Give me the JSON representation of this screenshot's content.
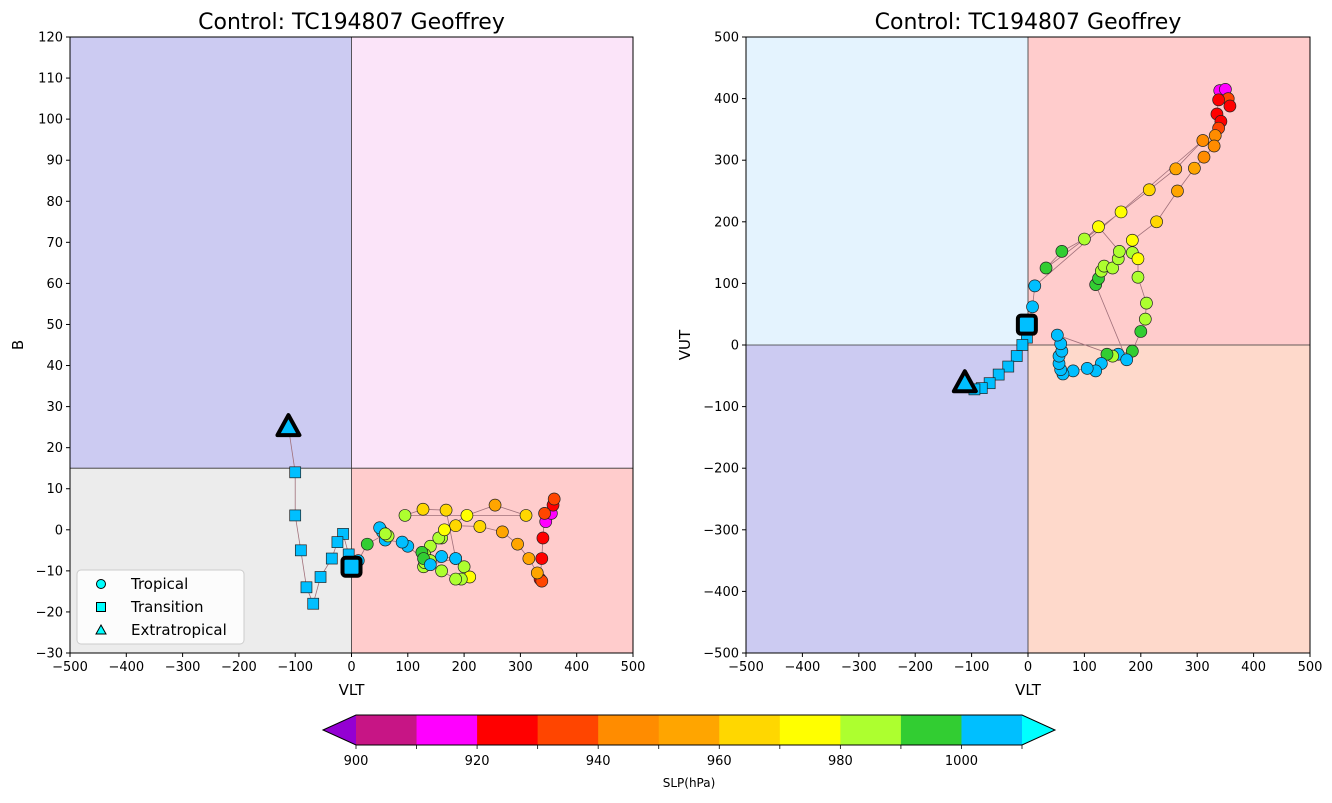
{
  "colors": {
    "b_quad_upper_left": "#cccbf2",
    "b_quad_upper_right": "#fbe4f9",
    "b_quad_lower_left": "#ececec",
    "b_quad_lower_right": "#ffcccc",
    "v_quad_upper_left": "#e4f3fe",
    "v_quad_upper_right": "#ffcccc",
    "v_quad_lower_left": "#cccbf2",
    "v_quad_lower_right": "#fed9cb",
    "track_line": "#a0707a",
    "current_outline": "#000000"
  },
  "colorbar": {
    "label": "SLP(hPa)",
    "tick_labels": [
      "900",
      "920",
      "940",
      "960",
      "980",
      "1000"
    ],
    "ticks": [
      900,
      920,
      940,
      960,
      980,
      1000
    ],
    "bounds": [
      900,
      910,
      920,
      930,
      940,
      950,
      960,
      970,
      980,
      990,
      1000,
      1010
    ],
    "min_color": "#9400d3",
    "max_color": "#00ffff",
    "colors": [
      "#c71585",
      "#ff00ff",
      "#ff0000",
      "#ff4500",
      "#ff8c00",
      "#ffa500",
      "#ffd700",
      "#ffff00",
      "#adff2f",
      "#32cd32",
      "#00bfff"
    ]
  },
  "legend": {
    "items": [
      {
        "label": "Tropical",
        "marker": "circle"
      },
      {
        "label": "Transition",
        "marker": "square"
      },
      {
        "label": "Extratropical",
        "marker": "triangle"
      }
    ],
    "placement": "lower-left",
    "marker_color": "#00ffff"
  },
  "chart_data": [
    {
      "type": "scatter",
      "title": "Control: TC194807 Geoffrey",
      "xlabel": "VLT",
      "ylabel": "B",
      "xlim": [
        -500,
        500
      ],
      "ylim": [
        -30,
        120
      ],
      "xticks": [
        -500,
        -400,
        -300,
        -200,
        -100,
        0,
        100,
        200,
        300,
        400,
        500
      ],
      "yticks": [
        -30,
        -20,
        -10,
        0,
        10,
        20,
        30,
        40,
        50,
        60,
        70,
        80,
        90,
        100,
        110,
        120
      ],
      "xtick_labels": [
        "−500",
        "−400",
        "−300",
        "−200",
        "−100",
        "0",
        "100",
        "200",
        "300",
        "400",
        "500"
      ],
      "ytick_labels": [
        "−30",
        "−20",
        "−10",
        "0",
        "10",
        "20",
        "30",
        "40",
        "50",
        "60",
        "70",
        "80",
        "90",
        "100",
        "110",
        "120"
      ],
      "quadrant_dividers": {
        "x": 0,
        "y": 15
      },
      "points": [
        {
          "x": 345,
          "y": 2,
          "p": 915,
          "m": "o"
        },
        {
          "x": 355,
          "y": 4,
          "p": 912,
          "m": "o"
        },
        {
          "x": 358,
          "y": 6,
          "p": 925,
          "m": "o"
        },
        {
          "x": 360,
          "y": 7.5,
          "p": 932,
          "m": "o"
        },
        {
          "x": 343,
          "y": 4,
          "p": 932,
          "m": "o"
        },
        {
          "x": 340,
          "y": -2,
          "p": 925,
          "m": "o"
        },
        {
          "x": 338,
          "y": -7,
          "p": 925,
          "m": "o"
        },
        {
          "x": 335,
          "y": -12,
          "p": 925,
          "m": "o"
        },
        {
          "x": 338,
          "y": -12.5,
          "p": 935,
          "m": "o"
        },
        {
          "x": 330,
          "y": -10.5,
          "p": 955,
          "m": "o"
        },
        {
          "x": 315,
          "y": -7,
          "p": 950,
          "m": "o"
        },
        {
          "x": 295,
          "y": -3.5,
          "p": 955,
          "m": "o"
        },
        {
          "x": 268,
          "y": -0.5,
          "p": 955,
          "m": "o"
        },
        {
          "x": 228,
          "y": 0.8,
          "p": 965,
          "m": "o"
        },
        {
          "x": 185,
          "y": 1,
          "p": 965,
          "m": "o"
        },
        {
          "x": 160,
          "y": -2,
          "p": 982,
          "m": "o"
        },
        {
          "x": 140,
          "y": -4,
          "p": 982,
          "m": "o"
        },
        {
          "x": 130,
          "y": -6,
          "p": 988,
          "m": "o"
        },
        {
          "x": 128,
          "y": -9,
          "p": 985,
          "m": "o"
        },
        {
          "x": 140,
          "y": -7.5,
          "p": 988,
          "m": "o"
        },
        {
          "x": 160,
          "y": -6.5,
          "p": 1005,
          "m": "o"
        },
        {
          "x": 185,
          "y": -7,
          "p": 995,
          "m": "o"
        },
        {
          "x": 200,
          "y": -9,
          "p": 982,
          "m": "o"
        },
        {
          "x": 210,
          "y": -11.5,
          "p": 978,
          "m": "o"
        },
        {
          "x": 195,
          "y": -12,
          "p": 985,
          "m": "o"
        },
        {
          "x": 185,
          "y": -12,
          "p": 982,
          "m": "o"
        },
        {
          "x": 160,
          "y": -10,
          "p": 985,
          "m": "o"
        },
        {
          "x": 130,
          "y": -8,
          "p": 985,
          "m": "o"
        },
        {
          "x": 125,
          "y": -5.5,
          "p": 992,
          "m": "o"
        },
        {
          "x": 128,
          "y": -7,
          "p": 995,
          "m": "o"
        },
        {
          "x": 155,
          "y": -2,
          "p": 982,
          "m": "o"
        },
        {
          "x": 165,
          "y": 0,
          "p": 978,
          "m": "o"
        },
        {
          "x": 205,
          "y": 3.5,
          "p": 975,
          "m": "o"
        },
        {
          "x": 255,
          "y": 6,
          "p": 955,
          "m": "o"
        },
        {
          "x": 310,
          "y": 3.5,
          "p": 960,
          "m": "o"
        },
        {
          "x": 95,
          "y": 3.5,
          "p": 985,
          "m": "o"
        },
        {
          "x": 127,
          "y": 5,
          "p": 965,
          "m": "o"
        },
        {
          "x": 168,
          "y": 4.8,
          "p": 962,
          "m": "o"
        },
        {
          "x": 185,
          "y": -7,
          "p": 1005,
          "m": "o"
        },
        {
          "x": 140,
          "y": -8.5,
          "p": 1005,
          "m": "o"
        },
        {
          "x": 100,
          "y": -4,
          "p": 1005,
          "m": "o"
        },
        {
          "x": 90,
          "y": -3,
          "p": 1005,
          "m": "o"
        },
        {
          "x": 60,
          "y": -2.5,
          "p": 1005,
          "m": "o"
        },
        {
          "x": 55,
          "y": -0.5,
          "p": 1005,
          "m": "o"
        },
        {
          "x": 50,
          "y": 0.5,
          "p": 1005,
          "m": "o"
        },
        {
          "x": 65,
          "y": -1.5,
          "p": 985,
          "m": "o"
        },
        {
          "x": 60,
          "y": -1,
          "p": 985,
          "m": "o"
        },
        {
          "x": 28,
          "y": -3.5,
          "p": 995,
          "m": "o"
        },
        {
          "x": 12,
          "y": -7.5,
          "p": 1005,
          "m": "o"
        },
        {
          "x": 2,
          "y": -8.5,
          "p": 1005,
          "m": "o"
        },
        {
          "x": -5,
          "y": -6,
          "p": 1005,
          "m": "s"
        },
        {
          "x": -15,
          "y": -1,
          "p": 1005,
          "m": "s"
        },
        {
          "x": -25,
          "y": -3,
          "p": 1005,
          "m": "s"
        },
        {
          "x": -35,
          "y": -7,
          "p": 1005,
          "m": "s"
        },
        {
          "x": -55,
          "y": -11.5,
          "p": 1005,
          "m": "s"
        },
        {
          "x": -68,
          "y": -18,
          "p": 1005,
          "m": "s"
        },
        {
          "x": -80,
          "y": -14,
          "p": 1005,
          "m": "s"
        },
        {
          "x": -90,
          "y": -5,
          "p": 1005,
          "m": "s"
        },
        {
          "x": -100,
          "y": 3.5,
          "p": 1005,
          "m": "s"
        },
        {
          "x": -100,
          "y": 14,
          "p": 1005,
          "m": "s"
        },
        {
          "x": -112,
          "y": 25,
          "p": 1005,
          "m": "^"
        }
      ],
      "current": {
        "x": 0,
        "y": -9,
        "p": 1005,
        "m": "s"
      }
    },
    {
      "type": "scatter",
      "title": "Control: TC194807 Geoffrey",
      "xlabel": "VLT",
      "ylabel": "VUT",
      "xlim": [
        -500,
        500
      ],
      "ylim": [
        -500,
        500
      ],
      "xticks": [
        -500,
        -400,
        -300,
        -200,
        -100,
        0,
        100,
        200,
        300,
        400,
        500
      ],
      "yticks": [
        -500,
        -400,
        -300,
        -200,
        -100,
        0,
        100,
        200,
        300,
        400,
        500
      ],
      "xtick_labels": [
        "−500",
        "−400",
        "−300",
        "−200",
        "−100",
        "0",
        "100",
        "200",
        "300",
        "400",
        "500"
      ],
      "ytick_labels": [
        "−500",
        "−400",
        "−300",
        "−200",
        "−100",
        "0",
        "100",
        "200",
        "300",
        "400",
        "500"
      ],
      "quadrant_dividers": {
        "x": 0,
        "y": 0
      },
      "points": [
        {
          "x": 340,
          "y": 413,
          "p": 915,
          "m": "o"
        },
        {
          "x": 350,
          "y": 415,
          "p": 915,
          "m": "o"
        },
        {
          "x": 355,
          "y": 400,
          "p": 935,
          "m": "o"
        },
        {
          "x": 358,
          "y": 388,
          "p": 925,
          "m": "o"
        },
        {
          "x": 338,
          "y": 398,
          "p": 925,
          "m": "o"
        },
        {
          "x": 335,
          "y": 375,
          "p": 925,
          "m": "o"
        },
        {
          "x": 342,
          "y": 363,
          "p": 925,
          "m": "o"
        },
        {
          "x": 338,
          "y": 352,
          "p": 935,
          "m": "o"
        },
        {
          "x": 332,
          "y": 340,
          "p": 945,
          "m": "o"
        },
        {
          "x": 330,
          "y": 323,
          "p": 945,
          "m": "o"
        },
        {
          "x": 312,
          "y": 305,
          "p": 945,
          "m": "o"
        },
        {
          "x": 295,
          "y": 287,
          "p": 955,
          "m": "o"
        },
        {
          "x": 265,
          "y": 250,
          "p": 955,
          "m": "o"
        },
        {
          "x": 228,
          "y": 200,
          "p": 965,
          "m": "o"
        },
        {
          "x": 185,
          "y": 170,
          "p": 975,
          "m": "o"
        },
        {
          "x": 185,
          "y": 150,
          "p": 982,
          "m": "o"
        },
        {
          "x": 195,
          "y": 140,
          "p": 975,
          "m": "o"
        },
        {
          "x": 195,
          "y": 110,
          "p": 982,
          "m": "o"
        },
        {
          "x": 210,
          "y": 68,
          "p": 982,
          "m": "o"
        },
        {
          "x": 208,
          "y": 42,
          "p": 982,
          "m": "o"
        },
        {
          "x": 200,
          "y": 22,
          "p": 995,
          "m": "o"
        },
        {
          "x": 185,
          "y": -10,
          "p": 995,
          "m": "o"
        },
        {
          "x": 160,
          "y": -15,
          "p": 1005,
          "m": "o"
        },
        {
          "x": 150,
          "y": -18,
          "p": 982,
          "m": "o"
        },
        {
          "x": 140,
          "y": -15,
          "p": 995,
          "m": "o"
        },
        {
          "x": 130,
          "y": -30,
          "p": 1005,
          "m": "o"
        },
        {
          "x": 120,
          "y": -42,
          "p": 1005,
          "m": "o"
        },
        {
          "x": 105,
          "y": -38,
          "p": 1005,
          "m": "o"
        },
        {
          "x": 80,
          "y": -42,
          "p": 1005,
          "m": "o"
        },
        {
          "x": 62,
          "y": -47,
          "p": 1005,
          "m": "o"
        },
        {
          "x": 58,
          "y": -40,
          "p": 1005,
          "m": "o"
        },
        {
          "x": 55,
          "y": -30,
          "p": 1005,
          "m": "o"
        },
        {
          "x": 55,
          "y": -18,
          "p": 1005,
          "m": "o"
        },
        {
          "x": 60,
          "y": -10,
          "p": 1005,
          "m": "o"
        },
        {
          "x": 58,
          "y": 2,
          "p": 1005,
          "m": "o"
        },
        {
          "x": 52,
          "y": 16,
          "p": 1005,
          "m": "o"
        },
        {
          "x": 175,
          "y": -24,
          "p": 1005,
          "m": "o"
        },
        {
          "x": 120,
          "y": 98,
          "p": 995,
          "m": "o"
        },
        {
          "x": 125,
          "y": 108,
          "p": 995,
          "m": "o"
        },
        {
          "x": 130,
          "y": 120,
          "p": 982,
          "m": "o"
        },
        {
          "x": 135,
          "y": 128,
          "p": 982,
          "m": "o"
        },
        {
          "x": 150,
          "y": 125,
          "p": 982,
          "m": "o"
        },
        {
          "x": 160,
          "y": 140,
          "p": 982,
          "m": "o"
        },
        {
          "x": 162,
          "y": 152,
          "p": 982,
          "m": "o"
        },
        {
          "x": 125,
          "y": 192,
          "p": 975,
          "m": "o"
        },
        {
          "x": 100,
          "y": 172,
          "p": 982,
          "m": "o"
        },
        {
          "x": 60,
          "y": 152,
          "p": 995,
          "m": "o"
        },
        {
          "x": 32,
          "y": 125,
          "p": 995,
          "m": "o"
        },
        {
          "x": 165,
          "y": 216,
          "p": 975,
          "m": "o"
        },
        {
          "x": 215,
          "y": 252,
          "p": 965,
          "m": "o"
        },
        {
          "x": 262,
          "y": 286,
          "p": 955,
          "m": "o"
        },
        {
          "x": 310,
          "y": 332,
          "p": 945,
          "m": "o"
        },
        {
          "x": 12,
          "y": 96,
          "p": 1005,
          "m": "o"
        },
        {
          "x": 8,
          "y": 62,
          "p": 1005,
          "m": "o"
        },
        {
          "x": 2,
          "y": 38,
          "p": 1005,
          "m": "o"
        },
        {
          "x": -2,
          "y": 12,
          "p": 1005,
          "m": "s"
        },
        {
          "x": -10,
          "y": 0,
          "p": 1005,
          "m": "s"
        },
        {
          "x": -20,
          "y": -18,
          "p": 1005,
          "m": "s"
        },
        {
          "x": -35,
          "y": -35,
          "p": 1005,
          "m": "s"
        },
        {
          "x": -52,
          "y": -48,
          "p": 1005,
          "m": "s"
        },
        {
          "x": -68,
          "y": -62,
          "p": 1005,
          "m": "s"
        },
        {
          "x": -82,
          "y": -70,
          "p": 1005,
          "m": "s"
        },
        {
          "x": -95,
          "y": -72,
          "p": 1005,
          "m": "s"
        },
        {
          "x": -112,
          "y": -62,
          "p": 1005,
          "m": "^"
        }
      ],
      "current": {
        "x": -2,
        "y": 33,
        "p": 1005,
        "m": "s"
      }
    }
  ]
}
